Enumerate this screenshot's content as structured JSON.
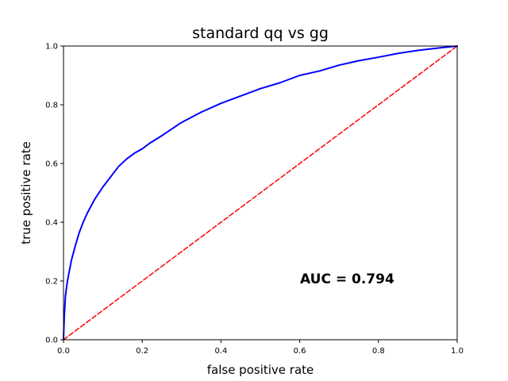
{
  "chart_data": {
    "type": "line",
    "title": "standard qq vs gg",
    "xlabel": "false positive rate",
    "ylabel": "true positive rate",
    "xlim": [
      0.0,
      1.0
    ],
    "ylim": [
      0.0,
      1.0
    ],
    "xticks": [
      0.0,
      0.2,
      0.4,
      0.6,
      0.8,
      1.0
    ],
    "yticks": [
      0.0,
      0.2,
      0.4,
      0.6,
      0.8,
      1.0
    ],
    "xtick_labels": [
      "0.0",
      "0.2",
      "0.4",
      "0.6",
      "0.8",
      "1.0"
    ],
    "ytick_labels": [
      "0.0",
      "0.2",
      "0.4",
      "0.6",
      "0.8",
      "1.0"
    ],
    "grid": false,
    "annotation": "AUC = 0.794",
    "series": [
      {
        "color": "#0000ff",
        "style": "solid",
        "x": [
          0.0,
          0.002,
          0.005,
          0.01,
          0.02,
          0.03,
          0.04,
          0.05,
          0.06,
          0.08,
          0.1,
          0.12,
          0.14,
          0.16,
          0.18,
          0.2,
          0.22,
          0.25,
          0.3,
          0.35,
          0.4,
          0.45,
          0.5,
          0.55,
          0.6,
          0.65,
          0.7,
          0.75,
          0.8,
          0.85,
          0.9,
          0.95,
          1.0
        ],
        "y": [
          0.0,
          0.08,
          0.15,
          0.2,
          0.27,
          0.32,
          0.365,
          0.4,
          0.43,
          0.48,
          0.52,
          0.555,
          0.59,
          0.615,
          0.635,
          0.65,
          0.67,
          0.695,
          0.74,
          0.775,
          0.805,
          0.83,
          0.855,
          0.875,
          0.9,
          0.915,
          0.935,
          0.95,
          0.962,
          0.975,
          0.985,
          0.993,
          1.0
        ]
      },
      {
        "color": "#ff0000",
        "style": "dashed",
        "x": [
          0.0,
          1.0
        ],
        "y": [
          0.0,
          1.0
        ]
      }
    ]
  }
}
